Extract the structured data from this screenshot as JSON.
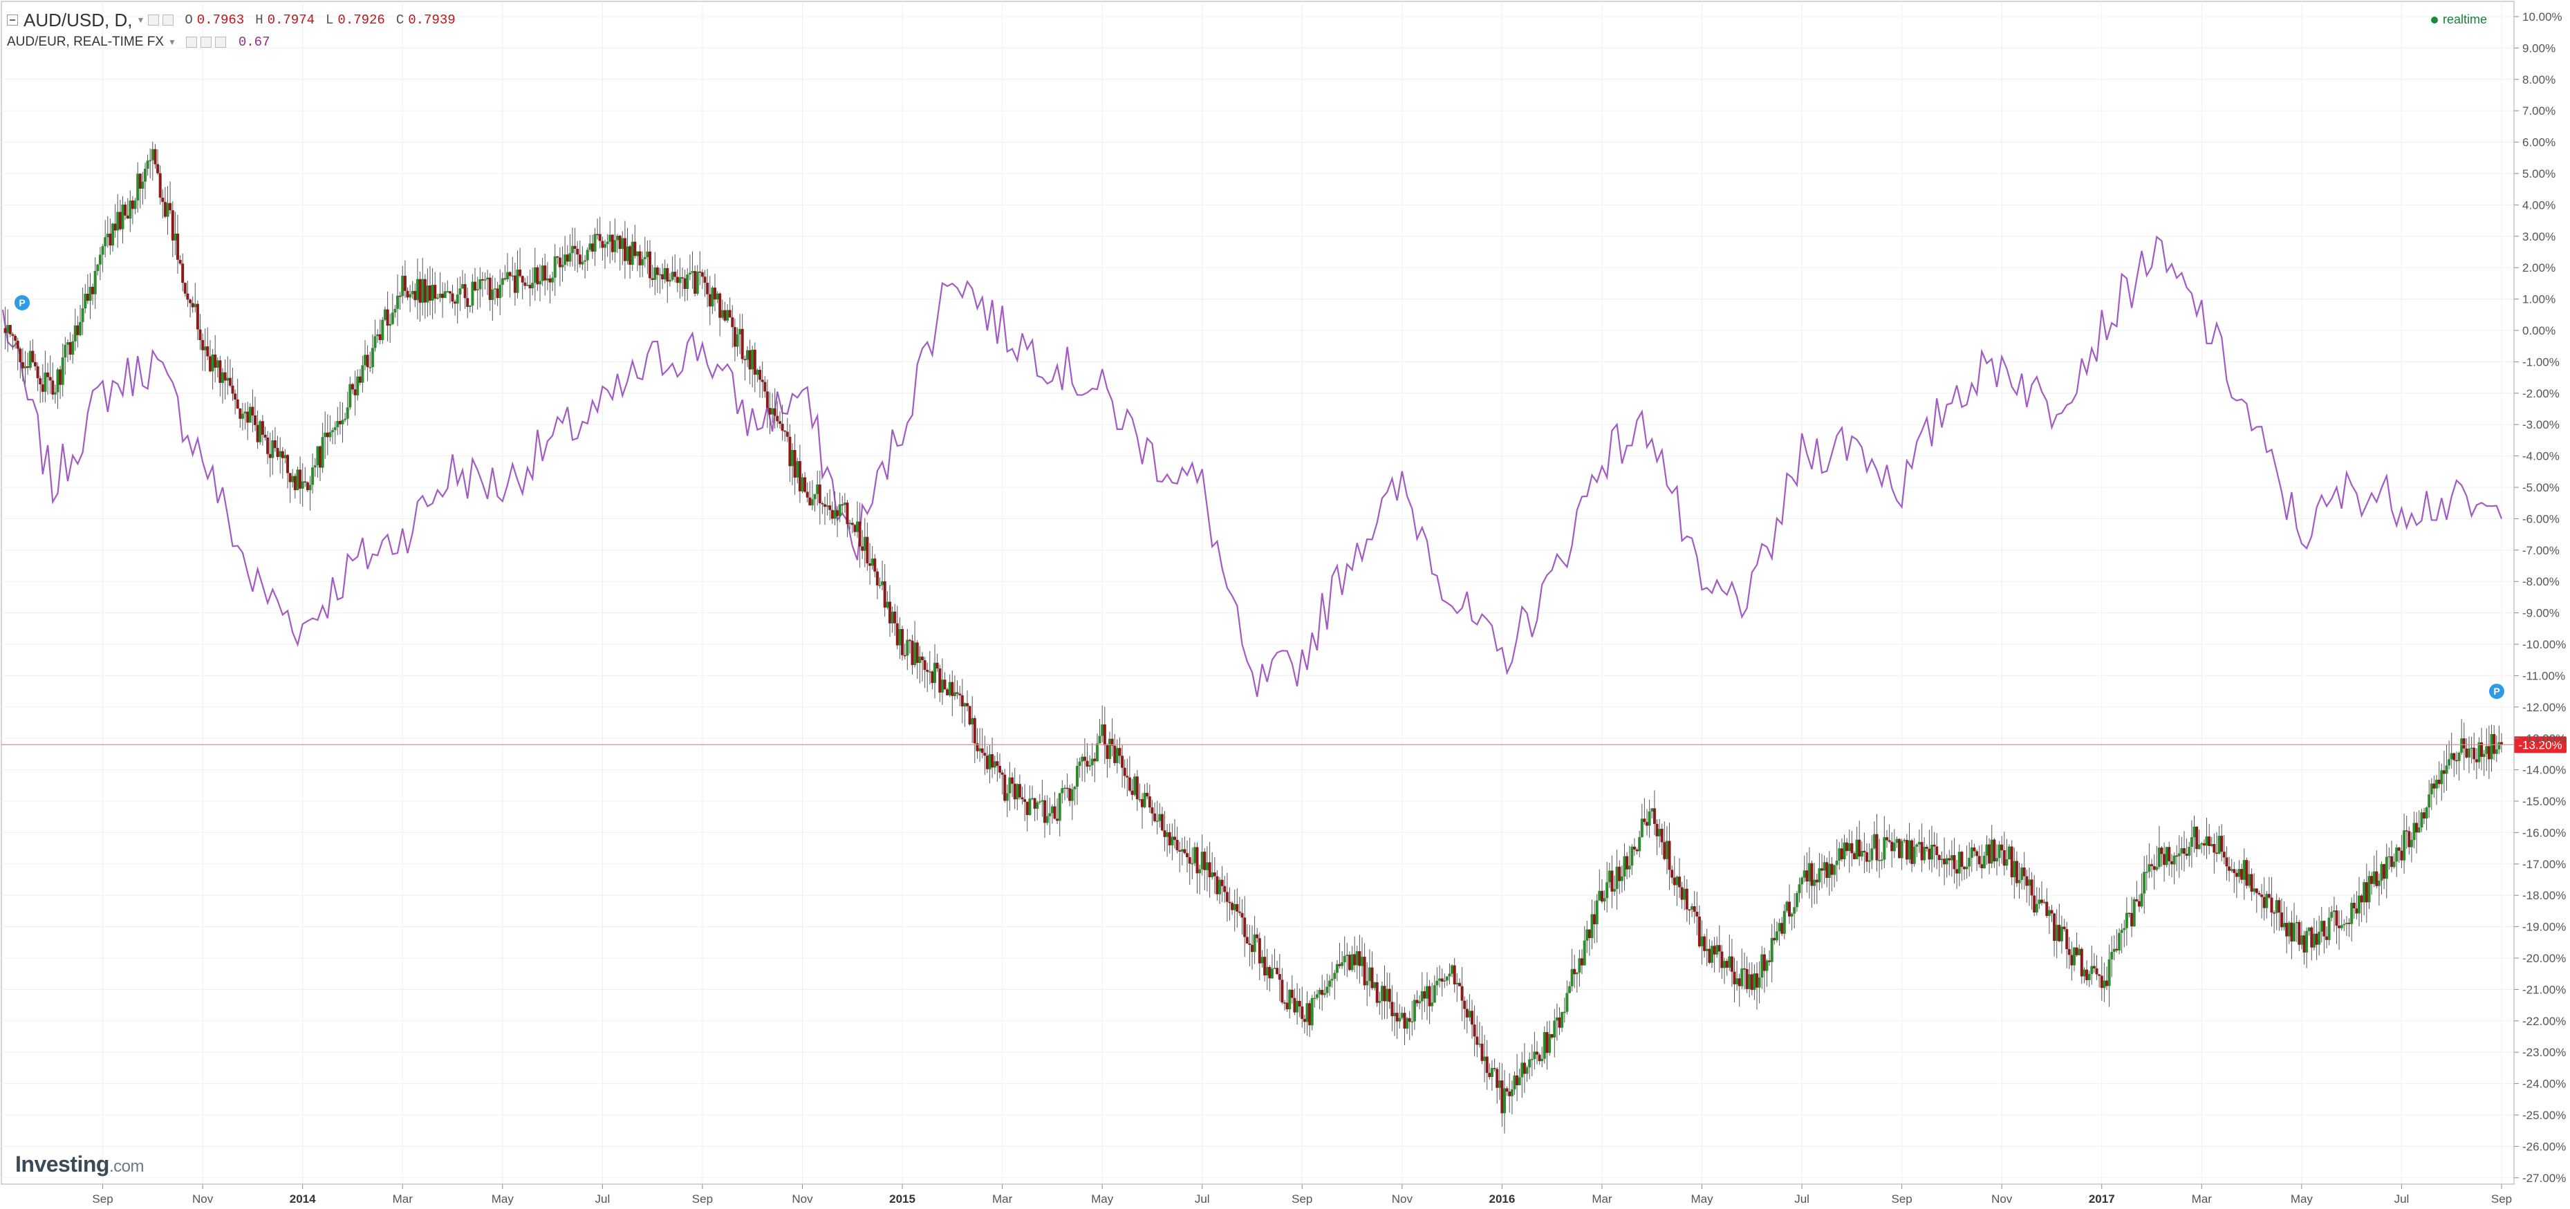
{
  "legend": {
    "main": {
      "symbol": "AUD/USD, D,",
      "o_key": "O",
      "o_val": "0.7963",
      "h_key": "H",
      "h_val": "0.7974",
      "l_key": "L",
      "l_val": "0.7926",
      "c_key": "C",
      "c_val": "0.7939"
    },
    "compare": {
      "symbol": "AUD/EUR, REAL-TIME FX",
      "value": "0.67"
    }
  },
  "status": {
    "realtime": "realtime"
  },
  "watermark": {
    "brand": "Investing",
    "suffix": ".com"
  },
  "price_label": "-13.20%",
  "colors": {
    "up": "#2e8b2e",
    "down": "#8b1a1a",
    "wick": "#555555",
    "compare_line": "#a25bc4",
    "price_line": "#f08080",
    "price_label_bg": "#e8262b",
    "marker": "#2d9be5",
    "grid": "#f0f0f0",
    "value_color": "#c0151b",
    "compare_value_color": "#8e2f8e"
  },
  "markers": [
    "P",
    "P"
  ],
  "chart_data": {
    "type": "line",
    "title": "AUD/USD, D,",
    "xlabel": "",
    "ylabel": "",
    "y_unit": "percent change",
    "ylim": [
      -27,
      10
    ],
    "grid": true,
    "legend_position": "top-left",
    "x_ticks": [
      "Sep",
      "Nov",
      "2014",
      "Mar",
      "May",
      "Jul",
      "Sep",
      "Nov",
      "2015",
      "Mar",
      "May",
      "Jul",
      "Sep",
      "Nov",
      "2016",
      "Mar",
      "May",
      "Jul",
      "Sep",
      "Nov",
      "2017",
      "Mar",
      "May",
      "Jul",
      "Sep"
    ],
    "x_ticks_bold": [
      "2014",
      "2015",
      "2016",
      "2017"
    ],
    "y_ticks": [
      "10.00%",
      "9.00%",
      "8.00%",
      "7.00%",
      "6.00%",
      "5.00%",
      "4.00%",
      "3.00%",
      "2.00%",
      "1.00%",
      "0.00%",
      "-1.00%",
      "-2.00%",
      "-3.00%",
      "-4.00%",
      "-5.00%",
      "-6.00%",
      "-7.00%",
      "-8.00%",
      "-9.00%",
      "-10.00%",
      "-11.00%",
      "-12.00%",
      "-13.00%",
      "-14.00%",
      "-15.00%",
      "-16.00%",
      "-17.00%",
      "-18.00%",
      "-19.00%",
      "-20.00%",
      "-21.00%",
      "-22.00%",
      "-23.00%",
      "-24.00%",
      "-25.00%",
      "-26.00%",
      "-27.00%"
    ],
    "last_value_label": "-13.20%",
    "series": [
      {
        "name": "AUD/USD, D,",
        "type": "candlestick",
        "x": [
          "2013-07",
          "2013-08",
          "2013-09",
          "2013-10",
          "2013-11",
          "2013-12",
          "2014-01",
          "2014-02",
          "2014-03",
          "2014-04",
          "2014-05",
          "2014-06",
          "2014-07",
          "2014-08",
          "2014-09",
          "2014-10",
          "2014-11",
          "2014-12",
          "2015-01",
          "2015-02",
          "2015-03",
          "2015-04",
          "2015-05",
          "2015-06",
          "2015-07",
          "2015-08",
          "2015-09",
          "2015-10",
          "2015-11",
          "2015-12",
          "2016-01",
          "2016-02",
          "2016-03",
          "2016-04",
          "2016-05",
          "2016-06",
          "2016-07",
          "2016-08",
          "2016-09",
          "2016-10",
          "2016-11",
          "2016-12",
          "2017-01",
          "2017-02",
          "2017-03",
          "2017-04",
          "2017-05",
          "2017-06",
          "2017-07",
          "2017-08",
          "2017-09"
        ],
        "values": [
          0.0,
          -2.0,
          2.5,
          5.5,
          -0.5,
          -3.0,
          -5.0,
          -2.0,
          1.5,
          1.0,
          1.5,
          2.0,
          3.0,
          2.0,
          1.5,
          -1.0,
          -5.0,
          -6.0,
          -10.0,
          -11.5,
          -14.5,
          -15.5,
          -13.0,
          -15.5,
          -17.0,
          -19.5,
          -22.0,
          -20.0,
          -22.0,
          -20.5,
          -24.5,
          -22.5,
          -18.0,
          -15.5,
          -19.5,
          -21.0,
          -17.5,
          -16.5,
          -16.5,
          -17.0,
          -16.5,
          -19.0,
          -21.0,
          -17.0,
          -16.0,
          -17.5,
          -19.5,
          -18.5,
          -16.5,
          -13.5,
          -13.2
        ]
      },
      {
        "name": "AUD/EUR, REAL-TIME FX",
        "type": "line",
        "x": [
          "2013-07",
          "2013-08",
          "2013-09",
          "2013-10",
          "2013-11",
          "2013-12",
          "2014-01",
          "2014-02",
          "2014-03",
          "2014-04",
          "2014-05",
          "2014-06",
          "2014-07",
          "2014-08",
          "2014-09",
          "2014-10",
          "2014-11",
          "2014-12",
          "2015-01",
          "2015-02",
          "2015-03",
          "2015-04",
          "2015-05",
          "2015-06",
          "2015-07",
          "2015-08",
          "2015-09",
          "2015-10",
          "2015-11",
          "2015-12",
          "2016-01",
          "2016-02",
          "2016-03",
          "2016-04",
          "2016-05",
          "2016-06",
          "2016-07",
          "2016-08",
          "2016-09",
          "2016-10",
          "2016-11",
          "2016-12",
          "2017-01",
          "2017-02",
          "2017-03",
          "2017-04",
          "2017-05",
          "2017-06",
          "2017-07",
          "2017-08",
          "2017-09"
        ],
        "values": [
          0.5,
          -5.0,
          -2.0,
          -1.0,
          -4.0,
          -8.0,
          -9.5,
          -7.5,
          -6.5,
          -4.5,
          -5.0,
          -3.5,
          -2.5,
          -1.0,
          -0.5,
          -3.0,
          -2.0,
          -7.0,
          -3.0,
          2.0,
          0.0,
          -1.0,
          -2.0,
          -4.0,
          -5.0,
          -11.5,
          -10.5,
          -7.0,
          -5.0,
          -8.5,
          -10.5,
          -8.0,
          -4.0,
          -3.0,
          -8.5,
          -8.5,
          -4.0,
          -3.5,
          -5.0,
          -2.0,
          -1.0,
          -2.5,
          0.0,
          2.5,
          0.5,
          -3.0,
          -6.5,
          -5.0,
          -5.5,
          -5.5,
          -6.0
        ]
      }
    ]
  }
}
